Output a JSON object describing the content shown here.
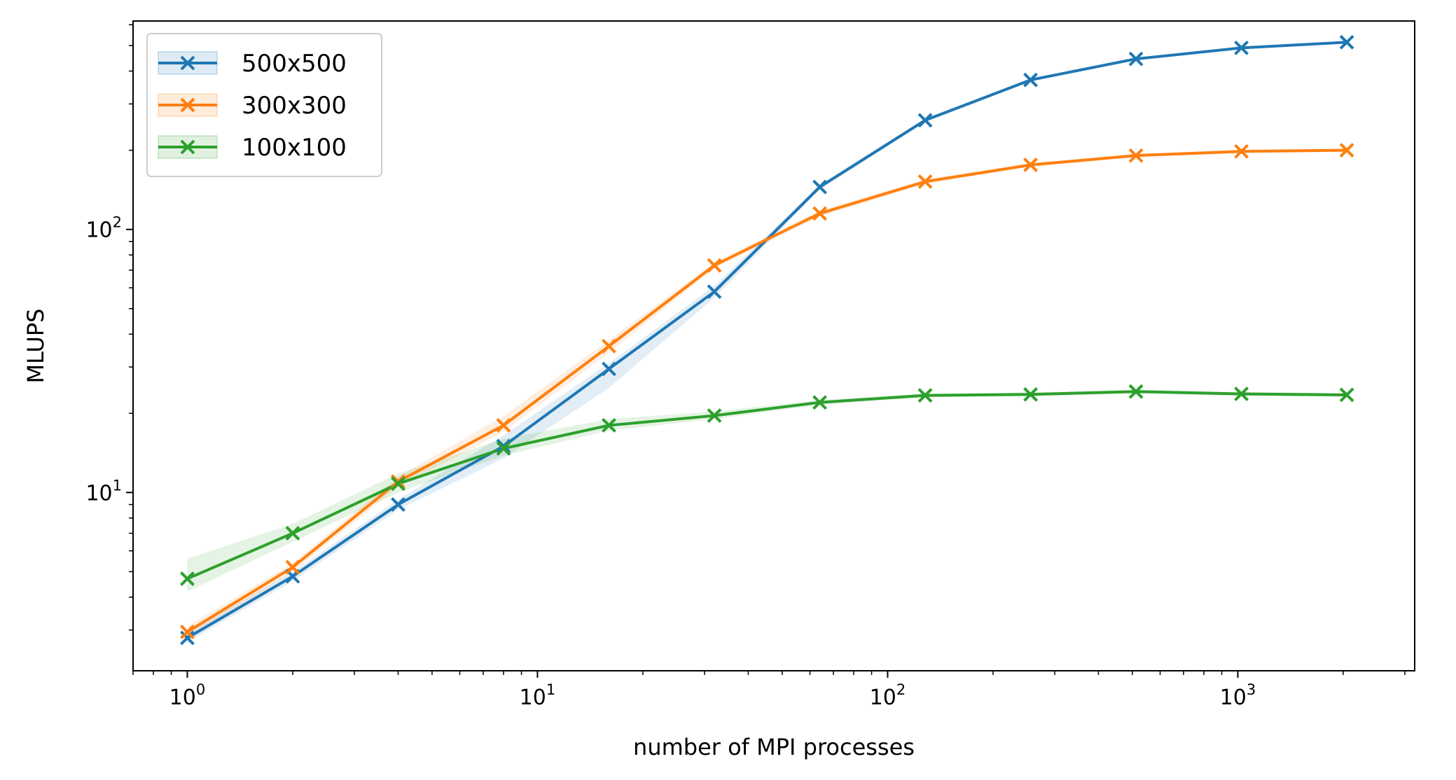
{
  "chart_data": {
    "type": "line",
    "xlabel": "number of MPI processes",
    "ylabel": "MLUPS",
    "xscale": "log",
    "yscale": "log",
    "xlim": [
      0.7,
      3200
    ],
    "ylim": [
      2.1,
      620
    ],
    "grid": false,
    "legend_position": "top-left",
    "x": [
      1,
      2,
      4,
      8,
      16,
      32,
      64,
      128,
      256,
      512,
      1024,
      2048
    ],
    "x_tick_labels": [
      {
        "value": 1,
        "base": "10",
        "exp": "0"
      },
      {
        "value": 10,
        "base": "10",
        "exp": "1"
      },
      {
        "value": 100,
        "base": "10",
        "exp": "2"
      },
      {
        "value": 1000,
        "base": "10",
        "exp": "3"
      }
    ],
    "y_tick_labels": [
      {
        "value": 10,
        "base": "10",
        "exp": "1"
      },
      {
        "value": 100,
        "base": "10",
        "exp": "2"
      }
    ],
    "series": [
      {
        "name": "500x500",
        "color": "#1f77b4",
        "marker": "x",
        "values": [
          2.8,
          4.8,
          9.0,
          15.0,
          29.5,
          58,
          145,
          260,
          370,
          445,
          490,
          515
        ],
        "lower": [
          2.7,
          4.6,
          8.6,
          13.5,
          25,
          55,
          142,
          256,
          365,
          440,
          485,
          510
        ],
        "upper": [
          2.95,
          5.0,
          9.4,
          16.5,
          31,
          61,
          148,
          264,
          375,
          450,
          495,
          520
        ]
      },
      {
        "name": "300x300",
        "color": "#ff7f0e",
        "marker": "x",
        "values": [
          2.95,
          5.2,
          11.0,
          18.0,
          36,
          73,
          115,
          152,
          176,
          191,
          198,
          200
        ],
        "lower": [
          2.8,
          5.0,
          10.5,
          17.0,
          34,
          71,
          112,
          149,
          173,
          188,
          195,
          197
        ],
        "upper": [
          3.1,
          5.4,
          11.5,
          19.5,
          38,
          75,
          118,
          155,
          179,
          194,
          201,
          203
        ]
      },
      {
        "name": "100x100",
        "color": "#2ca02c",
        "marker": "x",
        "values": [
          4.7,
          7.0,
          10.8,
          14.7,
          18.0,
          19.6,
          22.0,
          23.4,
          23.6,
          24.2,
          23.7,
          23.5
        ],
        "lower": [
          4.2,
          6.5,
          10.0,
          13.8,
          17.2,
          19.0,
          21.5,
          23.0,
          23.2,
          23.8,
          23.3,
          23.1
        ],
        "upper": [
          5.6,
          7.6,
          11.8,
          16.0,
          19.0,
          20.3,
          22.5,
          23.8,
          24.0,
          24.6,
          24.1,
          23.9
        ]
      }
    ]
  }
}
